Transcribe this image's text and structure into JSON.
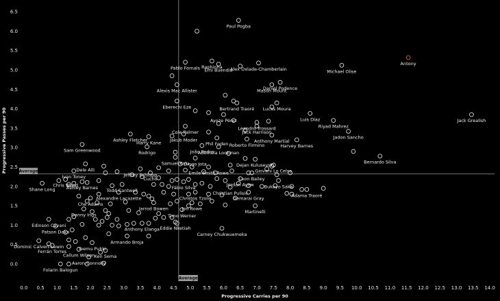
{
  "chart_data": {
    "type": "scatter",
    "title": "",
    "xlabel": "Progressive Carries per 90",
    "ylabel": "Progressive Passes per 90",
    "xlim": [
      -0.1,
      14.1
    ],
    "ylim": [
      -0.3,
      6.75
    ],
    "xticks": [
      "0.0",
      "0.5",
      "1.0",
      "1.5",
      "2.0",
      "2.5",
      "3.0",
      "3.5",
      "4.0",
      "4.5",
      "5.0",
      "5.5",
      "6.0",
      "6.5",
      "7.0",
      "7.5",
      "8.0",
      "8.5",
      "9.0",
      "9.5",
      "10.0",
      "10.5",
      "11.0",
      "11.5",
      "12.0",
      "12.5",
      "13.0",
      "13.5",
      "14.0"
    ],
    "yticks": [
      "0.0",
      "0.5",
      "1.0",
      "1.5",
      "2.0",
      "2.5",
      "3.0",
      "3.5",
      "4.0",
      "4.5",
      "5.0",
      "5.5",
      "6.0",
      "6.5"
    ],
    "grid": false,
    "average": {
      "x": 4.65,
      "y": 2.32,
      "label": "Average"
    },
    "point_color": "#d9d9d9",
    "highlight_color": "#e05555",
    "labeled_points": [
      {
        "name": "Paul Pogba",
        "x": 6.45,
        "y": 6.28
      },
      {
        "name": "Raphinha",
        "x": 5.65,
        "y": 5.23
      },
      {
        "name": "Pablo Fornals",
        "x": 4.85,
        "y": 5.2
      },
      {
        "name": "Emi Buendia",
        "x": 5.85,
        "y": 5.15
      },
      {
        "name": "Alex Oxlade-Chamberlain",
        "x": 7.05,
        "y": 5.18
      },
      {
        "name": "Michael Olise",
        "x": 9.55,
        "y": 5.12
      },
      {
        "name": "Antony",
        "x": 11.55,
        "y": 5.32,
        "highlight": true
      },
      {
        "name": "Daniel Podence",
        "x": 7.7,
        "y": 4.68
      },
      {
        "name": "Mason Mount",
        "x": 7.45,
        "y": 4.62
      },
      {
        "name": "Alexis Mac Allister",
        "x": 4.6,
        "y": 4.62
      },
      {
        "name": "Lucas Moura",
        "x": 7.6,
        "y": 4.15
      },
      {
        "name": "Bertrand Traoré",
        "x": 6.4,
        "y": 4.15
      },
      {
        "name": "Eberechi Eze",
        "x": 4.6,
        "y": 4.2
      },
      {
        "name": "Ayoze Pérez",
        "x": 6.0,
        "y": 3.85
      },
      {
        "name": "Leandro Trossard",
        "x": 7.0,
        "y": 3.65
      },
      {
        "name": "Luis Díaz",
        "x": 8.6,
        "y": 3.88
      },
      {
        "name": "Riyad Mahrez",
        "x": 9.3,
        "y": 3.7
      },
      {
        "name": "Jack Grealish",
        "x": 13.45,
        "y": 3.85
      },
      {
        "name": "Cole Palmer",
        "x": 4.85,
        "y": 3.55
      },
      {
        "name": "Jack Harrison",
        "x": 7.0,
        "y": 3.55
      },
      {
        "name": "Jakub Moder",
        "x": 4.8,
        "y": 3.35
      },
      {
        "name": "Ashley Fletcher",
        "x": 3.2,
        "y": 3.35
      },
      {
        "name": "Harry Kane",
        "x": 3.75,
        "y": 3.28
      },
      {
        "name": "Anthony Martial",
        "x": 7.45,
        "y": 3.32
      },
      {
        "name": "Jadon Sancho",
        "x": 9.75,
        "y": 3.42
      },
      {
        "name": "Phil Foden",
        "x": 5.8,
        "y": 3.25
      },
      {
        "name": "Roberto Firmino",
        "x": 6.7,
        "y": 3.22
      },
      {
        "name": "Harvey Barnes",
        "x": 8.2,
        "y": 3.2
      },
      {
        "name": "Sam Greenwood",
        "x": 1.75,
        "y": 3.08
      },
      {
        "name": "João Pedro",
        "x": 5.35,
        "y": 3.05
      },
      {
        "name": "Rodrigo",
        "x": 3.7,
        "y": 3.02
      },
      {
        "name": "Ademola Lookman",
        "x": 5.85,
        "y": 3.02
      },
      {
        "name": "Bernardo Silva",
        "x": 10.7,
        "y": 2.78
      },
      {
        "name": "Dejan Kulusevski",
        "x": 6.95,
        "y": 2.7
      },
      {
        "name": "Diogo Jota",
        "x": 5.15,
        "y": 2.73
      },
      {
        "name": "Samuel Kalu",
        "x": 4.55,
        "y": 2.75
      },
      {
        "name": "Dele Alli",
        "x": 1.85,
        "y": 2.58
      },
      {
        "name": "Emile Smith Rowe",
        "x": 5.55,
        "y": 2.5
      },
      {
        "name": "Giovani Lo Celso",
        "x": 7.5,
        "y": 2.55
      },
      {
        "name": "Jeffrey Schlupp",
        "x": 3.5,
        "y": 2.45
      },
      {
        "name": "Cucho",
        "x": 3.8,
        "y": 2.35
      },
      {
        "name": "Ivan Toney",
        "x": 1.5,
        "y": 2.4
      },
      {
        "name": "Leon Bailey",
        "x": 6.85,
        "y": 2.35
      },
      {
        "name": "Shane Long",
        "x": 0.55,
        "y": 2.08
      },
      {
        "name": "Jordan Ayew",
        "x": 6.5,
        "y": 2.2
      },
      {
        "name": "Chris Wood",
        "x": 1.25,
        "y": 2.18
      },
      {
        "name": "Ashley Barnes",
        "x": 1.75,
        "y": 2.12
      },
      {
        "name": "Todd Cantwell",
        "x": 2.95,
        "y": 2.05
      },
      {
        "name": "Bukayo Saka",
        "x": 7.65,
        "y": 2.15
      },
      {
        "name": "Fábio Silva",
        "x": 4.8,
        "y": 2.12
      },
      {
        "name": "Christian Pulisic",
        "x": 6.2,
        "y": 1.98
      },
      {
        "name": "Adama Traoré",
        "x": 8.5,
        "y": 1.92
      },
      {
        "name": "Alexandre Lacazette",
        "x": 2.85,
        "y": 1.85
      },
      {
        "name": "Christos Tzolis",
        "x": 5.15,
        "y": 1.85
      },
      {
        "name": "Demarai Gray",
        "x": 6.75,
        "y": 1.85
      },
      {
        "name": "Che Adams",
        "x": 2.0,
        "y": 1.7
      },
      {
        "name": "Jarrod Bowen",
        "x": 3.9,
        "y": 1.58
      },
      {
        "name": "Jon Rowe",
        "x": 5.05,
        "y": 1.58
      },
      {
        "name": "Martinelli",
        "x": 6.95,
        "y": 1.5
      },
      {
        "name": "Danny Ings",
        "x": 1.8,
        "y": 1.42
      },
      {
        "name": "Timo Werner",
        "x": 4.75,
        "y": 1.4
      },
      {
        "name": "Edinson Cavani",
        "x": 0.75,
        "y": 1.15
      },
      {
        "name": "Anthony Elanga",
        "x": 3.55,
        "y": 1.05
      },
      {
        "name": "Eddie Nketiah",
        "x": 4.55,
        "y": 1.08
      },
      {
        "name": "Patson Daka",
        "x": 0.95,
        "y": 0.98
      },
      {
        "name": "Carney Chukwuemeka",
        "x": 5.95,
        "y": 0.92
      },
      {
        "name": "Armando Broja",
        "x": 3.1,
        "y": 0.72
      },
      {
        "name": "Dominic Calvert-Lewin",
        "x": 0.45,
        "y": 0.6
      },
      {
        "name": "Ferrán Torres",
        "x": 0.85,
        "y": 0.48
      },
      {
        "name": "Teemu Pukki",
        "x": 2.05,
        "y": 0.55
      },
      {
        "name": "Callum Wilson",
        "x": 1.65,
        "y": 0.38
      },
      {
        "name": "Ken Sema",
        "x": 2.45,
        "y": 0.35
      },
      {
        "name": "Aaron Connolly",
        "x": 1.95,
        "y": 0.18
      },
      {
        "name": "Folarin Balogun",
        "x": 1.1,
        "y": 0.0
      }
    ],
    "unlabeled_points": [
      [
        5.2,
        6.0
      ],
      [
        4.45,
        4.85
      ],
      [
        6.5,
        5.1
      ],
      [
        6.05,
        4.35
      ],
      [
        6.3,
        4.2
      ],
      [
        7.45,
        4.05
      ],
      [
        5.15,
        3.95
      ],
      [
        5.55,
        3.9
      ],
      [
        6.3,
        3.7
      ],
      [
        7.35,
        3.68
      ],
      [
        5.85,
        3.62
      ],
      [
        6.65,
        3.45
      ],
      [
        5.55,
        3.4
      ],
      [
        4.45,
        3.3
      ],
      [
        9.9,
        2.9
      ],
      [
        6.15,
        2.85
      ],
      [
        4.55,
        2.88
      ],
      [
        6.65,
        2.72
      ],
      [
        6.2,
        2.55
      ],
      [
        4.7,
        2.58
      ],
      [
        2.4,
        2.52
      ],
      [
        4.05,
        2.48
      ],
      [
        7.45,
        2.52
      ],
      [
        7.3,
        2.45
      ],
      [
        4.35,
        2.4
      ],
      [
        5.05,
        2.5
      ],
      [
        4.85,
        2.42
      ],
      [
        5.4,
        2.38
      ],
      [
        5.75,
        2.35
      ],
      [
        6.25,
        2.4
      ],
      [
        6.75,
        2.35
      ],
      [
        7.6,
        2.3
      ],
      [
        8.0,
        2.35
      ],
      [
        2.45,
        2.35
      ],
      [
        2.8,
        2.38
      ],
      [
        3.25,
        2.3
      ],
      [
        3.55,
        2.25
      ],
      [
        4.05,
        2.22
      ],
      [
        4.45,
        2.15
      ],
      [
        1.05,
        2.15
      ],
      [
        1.35,
        2.05
      ],
      [
        1.5,
        2.08
      ],
      [
        1.9,
        2.1
      ],
      [
        2.25,
        2.15
      ],
      [
        2.65,
        2.02
      ],
      [
        3.9,
        2.05
      ],
      [
        4.15,
        2.05
      ],
      [
        4.35,
        2.0
      ],
      [
        4.6,
        2.18
      ],
      [
        4.95,
        2.18
      ],
      [
        5.15,
        2.05
      ],
      [
        5.35,
        2.08
      ],
      [
        5.6,
        2.0
      ],
      [
        5.8,
        2.2
      ],
      [
        6.05,
        2.15
      ],
      [
        6.45,
        2.08
      ],
      [
        6.75,
        2.02
      ],
      [
        7.15,
        2.0
      ],
      [
        7.55,
        2.02
      ],
      [
        8.05,
        2.0
      ],
      [
        8.35,
        1.92
      ],
      [
        9.0,
        1.95
      ],
      [
        2.25,
        1.8
      ],
      [
        3.35,
        1.85
      ],
      [
        3.6,
        1.8
      ],
      [
        3.75,
        1.75
      ],
      [
        4.2,
        1.85
      ],
      [
        4.5,
        1.8
      ],
      [
        4.95,
        1.8
      ],
      [
        5.55,
        1.8
      ],
      [
        5.95,
        1.78
      ],
      [
        6.35,
        1.7
      ],
      [
        7.9,
        1.82
      ],
      [
        8.05,
        1.8
      ],
      [
        1.65,
        1.75
      ],
      [
        1.9,
        1.62
      ],
      [
        2.2,
        1.58
      ],
      [
        2.6,
        1.55
      ],
      [
        3.05,
        1.6
      ],
      [
        3.85,
        1.68
      ],
      [
        4.4,
        1.55
      ],
      [
        4.6,
        1.62
      ],
      [
        4.95,
        1.5
      ],
      [
        5.3,
        1.55
      ],
      [
        5.65,
        1.62
      ],
      [
        6.05,
        1.52
      ],
      [
        2.05,
        1.35
      ],
      [
        2.55,
        1.3
      ],
      [
        2.45,
        1.38
      ],
      [
        3.15,
        1.38
      ],
      [
        3.45,
        1.32
      ],
      [
        4.05,
        1.3
      ],
      [
        4.2,
        1.2
      ],
      [
        3.95,
        1.18
      ],
      [
        1.5,
        1.22
      ],
      [
        1.35,
        1.15
      ],
      [
        2.15,
        1.15
      ],
      [
        2.35,
        1.1
      ],
      [
        2.5,
        1.2
      ],
      [
        2.8,
        1.15
      ],
      [
        3.1,
        1.02
      ],
      [
        3.3,
        1.05
      ],
      [
        3.75,
        1.05
      ],
      [
        4.45,
        1.2
      ],
      [
        4.6,
        1.05
      ],
      [
        1.75,
        1.02
      ],
      [
        2.25,
        1.0
      ],
      [
        2.65,
        1.0
      ],
      [
        2.85,
        0.98
      ],
      [
        1.25,
        0.82
      ],
      [
        1.45,
        0.88
      ],
      [
        2.55,
        0.78
      ],
      [
        3.75,
        0.72
      ],
      [
        1.85,
        0.68
      ],
      [
        1.35,
        0.62
      ],
      [
        1.55,
        0.58
      ],
      [
        0.75,
        0.52
      ],
      [
        1.35,
        0.45
      ],
      [
        2.3,
        0.3
      ],
      [
        1.35,
        0.0
      ],
      [
        1.9,
        0.0
      ],
      [
        2.4,
        0.02
      ]
    ]
  }
}
